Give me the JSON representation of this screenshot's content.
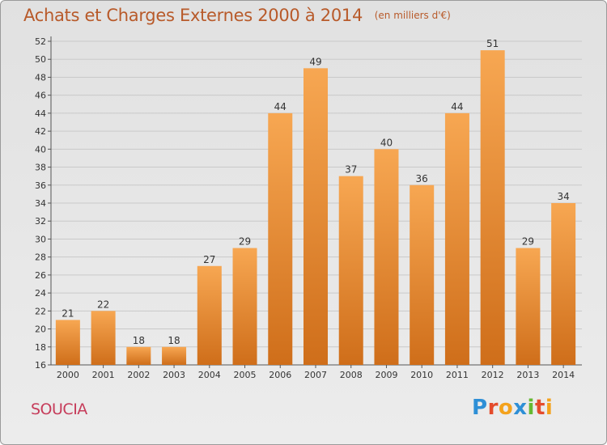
{
  "header": {
    "title": "Achats et Charges Externes 2000 à 2014",
    "unit": "(en milliers d'€)"
  },
  "footer": {
    "commune": "SOUCIA",
    "logo_text": "Proxiti"
  },
  "colors": {
    "bar_light": "#f7a752",
    "bar_dark": "#cf6e1a",
    "title": "#b85a2a",
    "commune": "#c63c5a"
  },
  "chart_data": {
    "type": "bar",
    "categories": [
      "2000",
      "2001",
      "2002",
      "2003",
      "2004",
      "2005",
      "2006",
      "2007",
      "2008",
      "2009",
      "2010",
      "2011",
      "2012",
      "2013",
      "2014"
    ],
    "values": [
      21,
      22,
      18,
      18,
      27,
      29,
      44,
      49,
      37,
      40,
      36,
      44,
      51,
      29,
      34
    ],
    "title": "Achats et Charges Externes 2000 à 2014",
    "ylim": [
      16,
      52
    ],
    "yticks": [
      16,
      18,
      20,
      22,
      24,
      26,
      28,
      30,
      32,
      34,
      36,
      38,
      40,
      42,
      44,
      46,
      48,
      50,
      52
    ],
    "grid": true,
    "legend": "none"
  }
}
